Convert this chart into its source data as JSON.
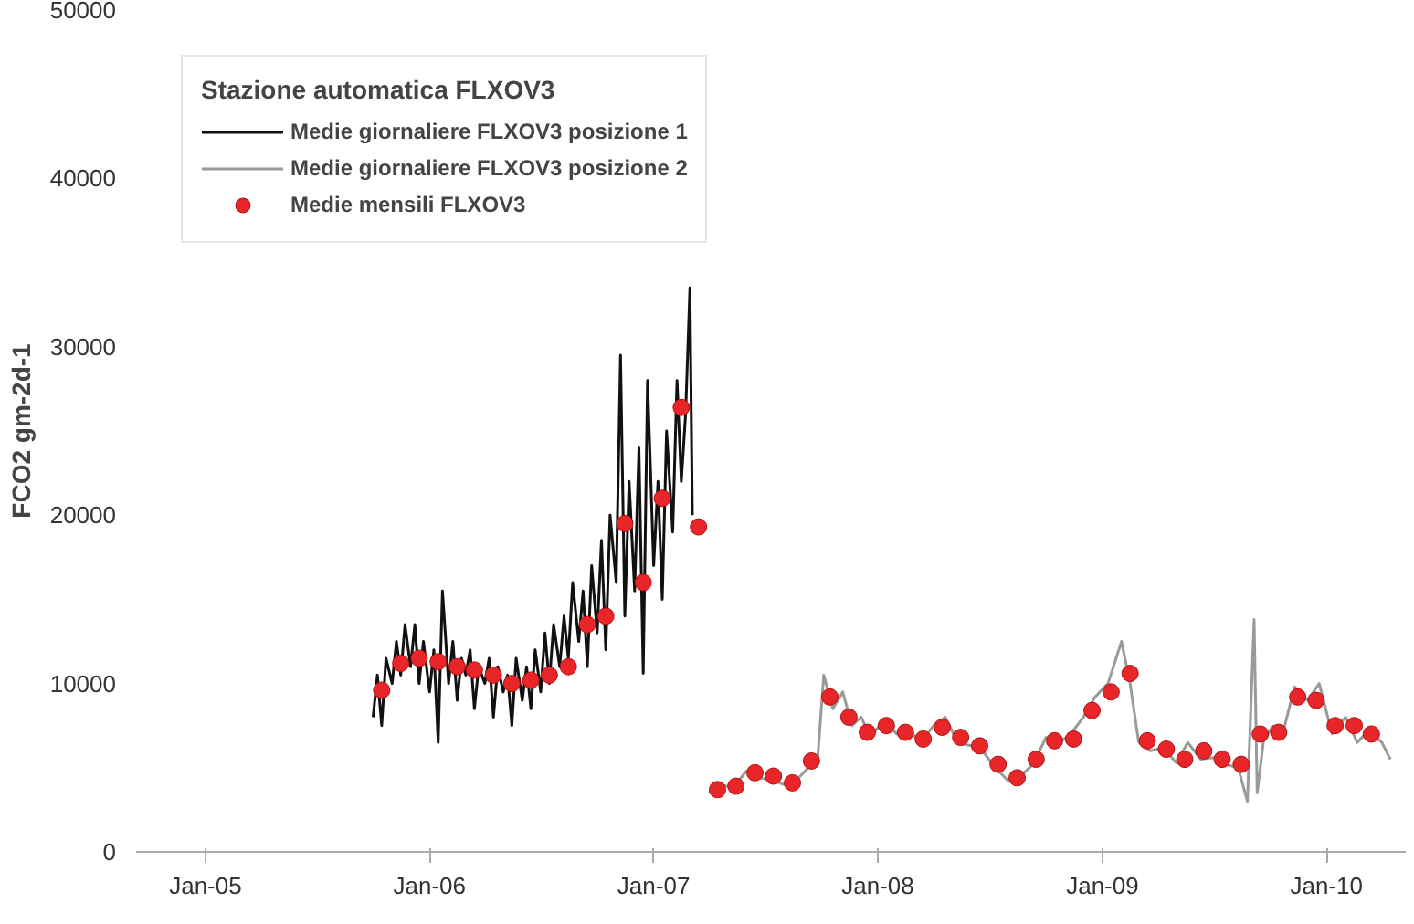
{
  "chart_data": {
    "type": "line",
    "ylabel": "FCO2 gm-2d-1",
    "legend_title": "Stazione automatica FLXOV3",
    "legend": "top left",
    "grid": false,
    "xlim": [
      "2004-09-10",
      "2010-05-10"
    ],
    "ylim": [
      0,
      50000
    ],
    "xticks": [
      {
        "value": "2005-01-01",
        "label": "Jan-05"
      },
      {
        "value": "2006-01-01",
        "label": "Jan-06"
      },
      {
        "value": "2007-01-01",
        "label": "Jan-07"
      },
      {
        "value": "2008-01-01",
        "label": "Jan-08"
      },
      {
        "value": "2009-01-01",
        "label": "Jan-09"
      },
      {
        "value": "2010-01-01",
        "label": "Jan-10"
      }
    ],
    "yticks": [
      0,
      10000,
      20000,
      30000,
      40000,
      50000
    ],
    "series": [
      {
        "name": "Medie giornaliere FLXOV3 posizione 1",
        "color": "#111111",
        "line_style": "solid",
        "marker": "none",
        "x": [
          "2005-10-01",
          "2005-10-08",
          "2005-10-15",
          "2005-10-22",
          "2005-11-01",
          "2005-11-08",
          "2005-11-15",
          "2005-11-22",
          "2005-12-01",
          "2005-12-08",
          "2005-12-15",
          "2005-12-22",
          "2006-01-01",
          "2006-01-08",
          "2006-01-15",
          "2006-01-22",
          "2006-02-01",
          "2006-02-08",
          "2006-02-15",
          "2006-02-22",
          "2006-03-01",
          "2006-03-08",
          "2006-03-15",
          "2006-03-22",
          "2006-04-01",
          "2006-04-08",
          "2006-04-15",
          "2006-04-22",
          "2006-05-01",
          "2006-05-08",
          "2006-05-15",
          "2006-05-22",
          "2006-06-01",
          "2006-06-08",
          "2006-06-15",
          "2006-06-22",
          "2006-07-01",
          "2006-07-08",
          "2006-07-15",
          "2006-07-22",
          "2006-08-01",
          "2006-08-08",
          "2006-08-15",
          "2006-08-22",
          "2006-09-01",
          "2006-09-08",
          "2006-09-15",
          "2006-09-22",
          "2006-10-01",
          "2006-10-08",
          "2006-10-15",
          "2006-10-22",
          "2006-11-01",
          "2006-11-08",
          "2006-11-15",
          "2006-11-22",
          "2006-12-01",
          "2006-12-08",
          "2006-12-15",
          "2006-12-22",
          "2007-01-01",
          "2007-01-08",
          "2007-01-15",
          "2007-01-22",
          "2007-02-01",
          "2007-02-08",
          "2007-02-15",
          "2007-02-22",
          "2007-03-01",
          "2007-03-05"
        ],
        "values": [
          8000,
          10500,
          7500,
          11500,
          10000,
          12500,
          10500,
          13500,
          11000,
          13500,
          10000,
          12500,
          9500,
          12000,
          6500,
          15500,
          10000,
          12500,
          9000,
          11500,
          10500,
          12000,
          8500,
          11000,
          10000,
          11500,
          8000,
          11000,
          9500,
          10500,
          7500,
          11500,
          9000,
          11000,
          8500,
          12000,
          9500,
          13000,
          10000,
          13500,
          11000,
          14000,
          11500,
          16000,
          12500,
          15500,
          11000,
          17000,
          13000,
          18500,
          12000,
          20000,
          16000,
          29500,
          14000,
          22000,
          15500,
          24000,
          10600,
          28000,
          17000,
          22000,
          15000,
          25000,
          19000,
          28000,
          22000,
          26000,
          33500,
          20000
        ]
      },
      {
        "name": "Medie giornaliere FLXOV3 posizione 2",
        "color": "#9a9a9a",
        "line_style": "solid",
        "marker": "none",
        "x": [
          "2007-04-01",
          "2007-04-20",
          "2007-05-10",
          "2007-06-01",
          "2007-06-20",
          "2007-07-10",
          "2007-08-01",
          "2007-08-20",
          "2007-09-10",
          "2007-09-25",
          "2007-10-05",
          "2007-10-20",
          "2007-11-05",
          "2007-11-20",
          "2007-12-05",
          "2007-12-20",
          "2008-01-10",
          "2008-02-01",
          "2008-02-20",
          "2008-03-10",
          "2008-04-01",
          "2008-04-20",
          "2008-05-10",
          "2008-06-01",
          "2008-06-20",
          "2008-07-10",
          "2008-08-01",
          "2008-08-20",
          "2008-09-10",
          "2008-10-01",
          "2008-10-20",
          "2008-11-10",
          "2008-12-01",
          "2008-12-20",
          "2009-01-10",
          "2009-02-01",
          "2009-02-15",
          "2009-03-01",
          "2009-03-20",
          "2009-04-10",
          "2009-05-01",
          "2009-05-20",
          "2009-06-10",
          "2009-07-01",
          "2009-07-20",
          "2009-08-10",
          "2009-08-25",
          "2009-09-05",
          "2009-09-10",
          "2009-09-20",
          "2009-10-05",
          "2009-10-20",
          "2009-11-10",
          "2009-12-01",
          "2009-12-20",
          "2010-01-10",
          "2010-02-01",
          "2010-02-20",
          "2010-03-10",
          "2010-04-01",
          "2010-04-15"
        ],
        "values": [
          3500,
          4000,
          3800,
          4800,
          4400,
          4300,
          4000,
          4200,
          5000,
          5500,
          10500,
          8500,
          9500,
          7500,
          8000,
          6800,
          7800,
          7000,
          7300,
          6500,
          7500,
          8000,
          6500,
          6300,
          6000,
          5000,
          4200,
          4500,
          5200,
          6800,
          6400,
          7000,
          8000,
          9200,
          10000,
          12500,
          10000,
          6500,
          6000,
          6200,
          5300,
          6500,
          5500,
          5600,
          5200,
          5000,
          3000,
          13800,
          3500,
          6500,
          7500,
          6800,
          9800,
          9000,
          10000,
          7000,
          8000,
          6500,
          7200,
          6500,
          5500
        ]
      },
      {
        "name": "Medie mensili FLXOV3",
        "type": "scatter",
        "color": "#e8262a",
        "marker": "circle",
        "x": [
          "2005-10-15",
          "2005-11-15",
          "2005-12-15",
          "2006-01-15",
          "2006-02-15",
          "2006-03-15",
          "2006-04-15",
          "2006-05-15",
          "2006-06-15",
          "2006-07-15",
          "2006-08-15",
          "2006-09-15",
          "2006-10-15",
          "2006-11-15",
          "2006-12-15",
          "2007-01-15",
          "2007-02-15",
          "2007-03-15",
          "2007-04-15",
          "2007-05-15",
          "2007-06-15",
          "2007-07-15",
          "2007-08-15",
          "2007-09-15",
          "2007-10-15",
          "2007-11-15",
          "2007-12-15",
          "2008-01-15",
          "2008-02-15",
          "2008-03-15",
          "2008-04-15",
          "2008-05-15",
          "2008-06-15",
          "2008-07-15",
          "2008-08-15",
          "2008-09-15",
          "2008-10-15",
          "2008-11-15",
          "2008-12-15",
          "2009-01-15",
          "2009-02-15",
          "2009-03-15",
          "2009-04-15",
          "2009-05-15",
          "2009-06-15",
          "2009-07-15",
          "2009-08-15",
          "2009-09-15",
          "2009-10-15",
          "2009-11-15",
          "2009-12-15",
          "2010-01-15",
          "2010-02-15",
          "2010-03-15"
        ],
        "values": [
          9600,
          11200,
          11500,
          11300,
          11000,
          10800,
          10500,
          10000,
          10200,
          10500,
          11000,
          13500,
          14000,
          19500,
          16000,
          21000,
          26400,
          19300,
          3700,
          3900,
          4700,
          4500,
          4100,
          5400,
          9200,
          8000,
          7100,
          7500,
          7100,
          6700,
          7400,
          6800,
          6300,
          5200,
          4400,
          5500,
          6600,
          6700,
          8400,
          9500,
          10600,
          6600,
          6100,
          5500,
          6000,
          5500,
          5200,
          7000,
          7100,
          9200,
          9000,
          7500,
          7500,
          7000
        ]
      }
    ]
  }
}
